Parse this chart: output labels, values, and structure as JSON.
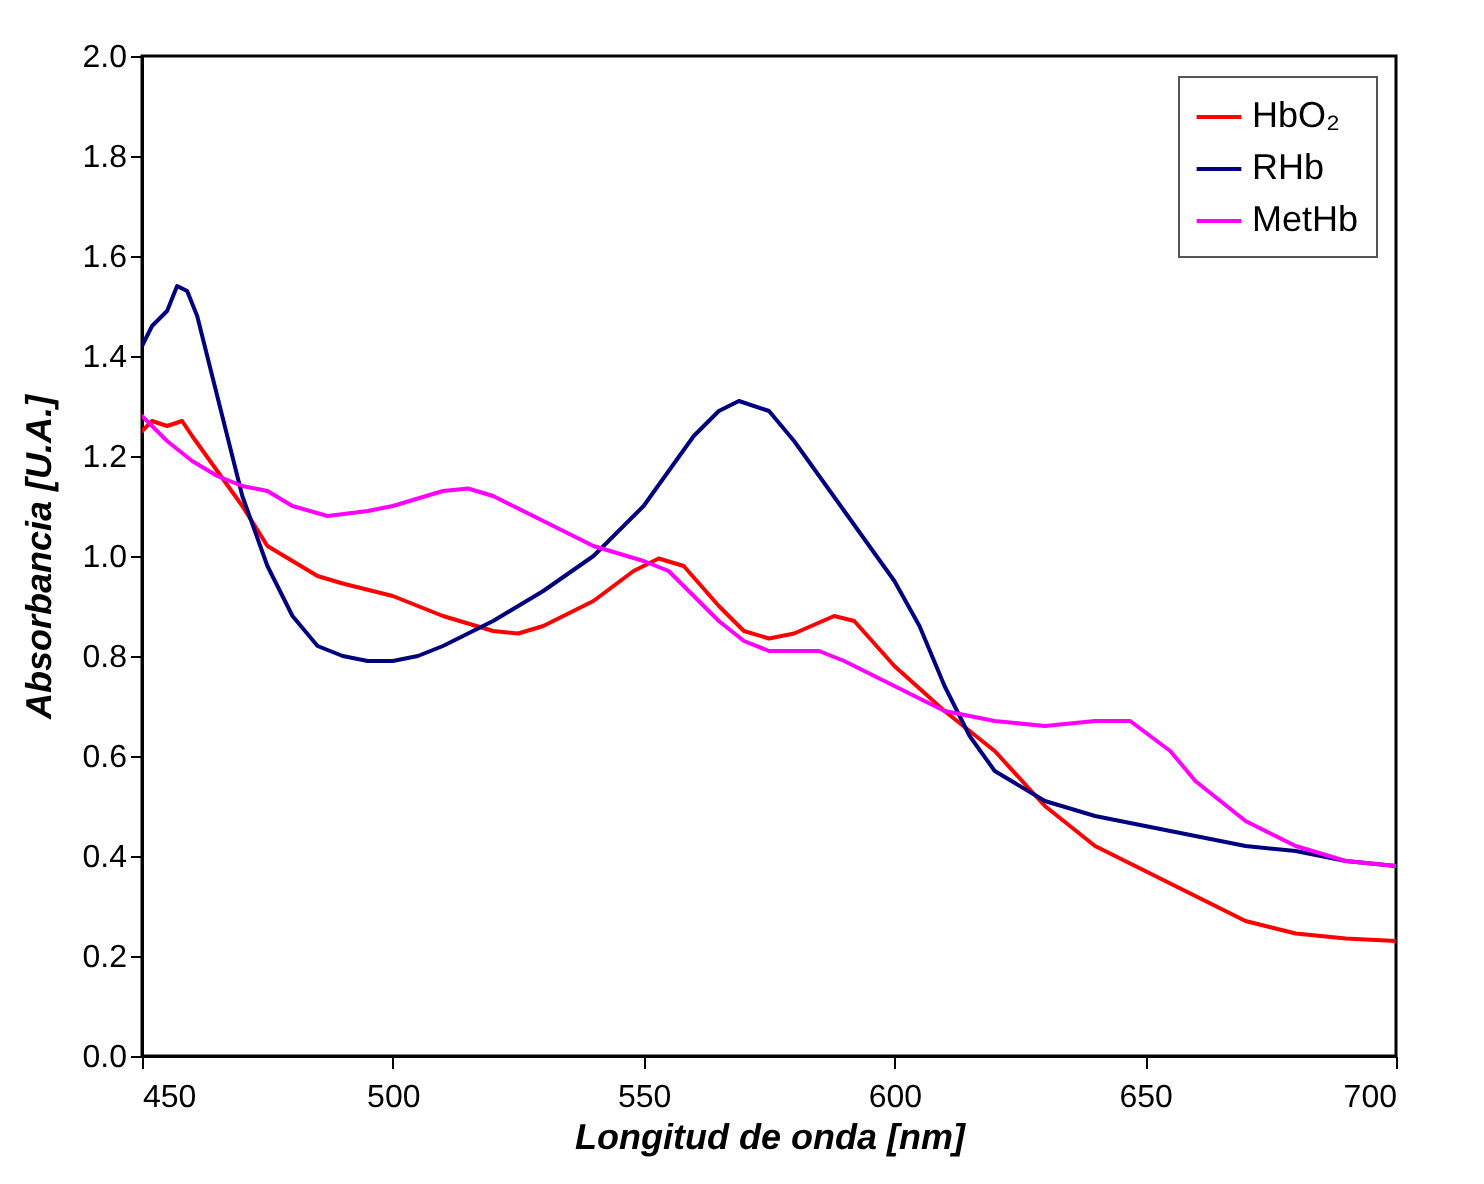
{
  "chart_data": {
    "type": "line",
    "xlabel": "Longitud de onda [nm]",
    "ylabel": "Absorbancia [U.A.]",
    "xlim": [
      450,
      700
    ],
    "ylim": [
      0,
      2
    ],
    "xticks": [
      450,
      500,
      550,
      600,
      650,
      700
    ],
    "yticks": [
      {
        "value": 0,
        "label": "0.0"
      },
      {
        "value": 0.2,
        "label": "0.2"
      },
      {
        "value": 0.4,
        "label": "0.4"
      },
      {
        "value": 0.6,
        "label": "0.6"
      },
      {
        "value": 0.8,
        "label": "0.8"
      },
      {
        "value": 1,
        "label": "1.0"
      },
      {
        "value": 1.2,
        "label": "1.2"
      },
      {
        "value": 1.4,
        "label": "1.4"
      },
      {
        "value": 1.6,
        "label": "1.6"
      },
      {
        "value": 1.8,
        "label": "1.8"
      },
      {
        "value": 2,
        "label": "2.0"
      }
    ],
    "grid": false,
    "legend": "top right",
    "line_style": "solid",
    "series": [
      {
        "name": "HbO₂",
        "color": "#ff0000",
        "x": [
          450,
          452,
          455,
          458,
          460,
          465,
          470,
          475,
          480,
          485,
          490,
          500,
          510,
          520,
          525,
          530,
          540,
          548,
          553,
          558,
          565,
          570,
          575,
          580,
          588,
          592,
          600,
          610,
          620,
          630,
          640,
          650,
          660,
          670,
          680,
          690,
          700
        ],
        "values": [
          1.25,
          1.27,
          1.26,
          1.27,
          1.24,
          1.17,
          1.1,
          1.02,
          0.99,
          0.96,
          0.945,
          0.92,
          0.88,
          0.85,
          0.845,
          0.86,
          0.91,
          0.97,
          0.995,
          0.98,
          0.9,
          0.85,
          0.835,
          0.845,
          0.88,
          0.87,
          0.78,
          0.69,
          0.61,
          0.5,
          0.42,
          0.37,
          0.32,
          0.27,
          0.245,
          0.235,
          0.23
        ]
      },
      {
        "name": "RHb",
        "color": "#00007f",
        "x": [
          450,
          452,
          455,
          457,
          459,
          461,
          465,
          470,
          475,
          480,
          485,
          490,
          495,
          500,
          505,
          510,
          520,
          530,
          540,
          550,
          560,
          565,
          569,
          575,
          580,
          590,
          600,
          605,
          610,
          615,
          620,
          630,
          640,
          650,
          660,
          670,
          680,
          690,
          700
        ],
        "values": [
          1.42,
          1.46,
          1.49,
          1.54,
          1.53,
          1.48,
          1.32,
          1.12,
          0.98,
          0.88,
          0.82,
          0.8,
          0.79,
          0.79,
          0.8,
          0.82,
          0.87,
          0.93,
          1.0,
          1.1,
          1.24,
          1.29,
          1.31,
          1.29,
          1.23,
          1.09,
          0.95,
          0.86,
          0.74,
          0.64,
          0.57,
          0.51,
          0.48,
          0.46,
          0.44,
          0.42,
          0.41,
          0.39,
          0.38
        ]
      },
      {
        "name": "MetHb",
        "color": "#ff00ff",
        "x": [
          450,
          455,
          460,
          465,
          470,
          475,
          480,
          487,
          495,
          500,
          510,
          515,
          520,
          530,
          540,
          550,
          555,
          560,
          565,
          570,
          575,
          580,
          585,
          590,
          600,
          610,
          620,
          630,
          640,
          647,
          655,
          660,
          670,
          680,
          690,
          700
        ],
        "values": [
          1.28,
          1.23,
          1.19,
          1.16,
          1.14,
          1.13,
          1.1,
          1.08,
          1.09,
          1.1,
          1.13,
          1.135,
          1.12,
          1.07,
          1.02,
          0.99,
          0.97,
          0.92,
          0.87,
          0.83,
          0.81,
          0.81,
          0.81,
          0.79,
          0.74,
          0.69,
          0.67,
          0.66,
          0.67,
          0.67,
          0.61,
          0.55,
          0.47,
          0.42,
          0.39,
          0.38
        ]
      }
    ]
  }
}
